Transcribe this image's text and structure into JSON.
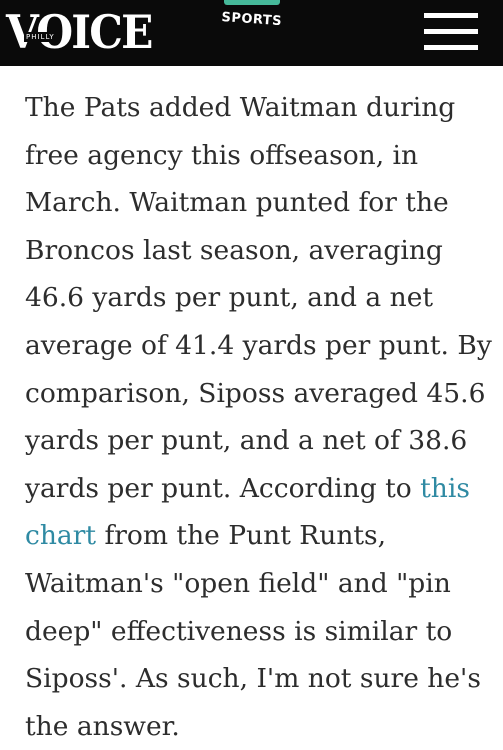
{
  "header": {
    "logo_main": "VOICE",
    "logo_sub": "PHILLY",
    "section_label": "SPORTS",
    "accent_color": "#46b99a",
    "menu_icon": "hamburger-menu-icon"
  },
  "article": {
    "lines": [
      "The Pats added Waitman during",
      "free agency this offseason, in",
      "March. Waitman punted for the",
      "Broncos last season, averaging",
      "46.6 yards per punt, and a net",
      "average of 41.4 yards per punt. By",
      "comparison, Siposs averaged 45.6",
      "yards per punt, and a net of 38.6",
      "yards per punt. According to "
    ],
    "link_part1": "this",
    "link_part2": "chart",
    "after_link": " from the Punt Runts,",
    "lines_after": [
      "Waitman's \"open field\" and \"pin",
      "deep\" effectiveness is similar to",
      "Siposs'. As such, I'm not sure he's",
      "the answer."
    ],
    "link_color": "#2f8aa3"
  }
}
